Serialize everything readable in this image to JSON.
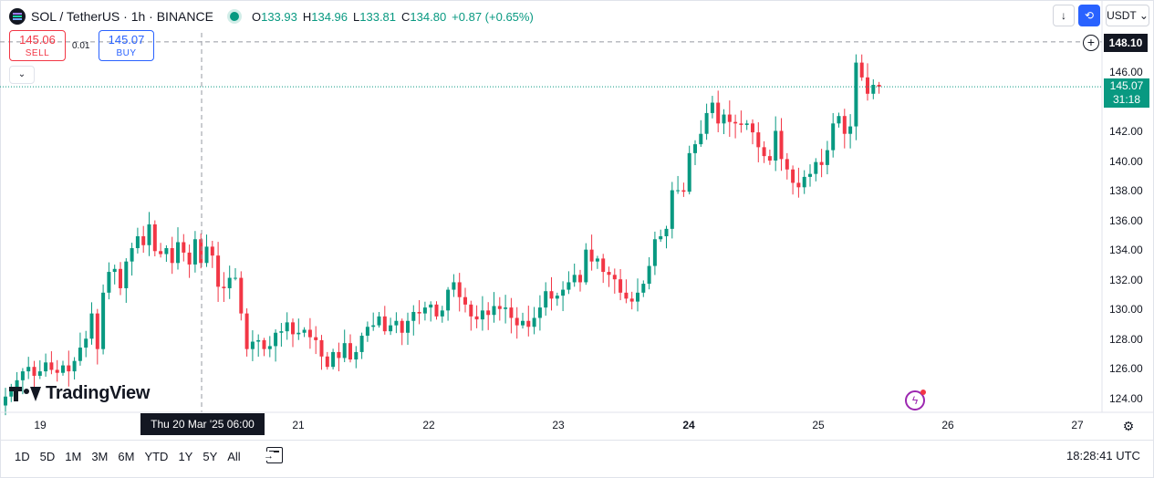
{
  "header": {
    "symbol_title": "SOL / TetherUS · 1h · BINANCE",
    "ohlc": {
      "o_label": "O",
      "o": "133.93",
      "h_label": "H",
      "h": "134.96",
      "l_label": "L",
      "l": "133.81",
      "c_label": "C",
      "c": "134.80",
      "change": "+0.87 (+0.65%)"
    }
  },
  "trade": {
    "sell_price": "145.06",
    "sell_label": "SELL",
    "spread": "0.01",
    "buy_price": "145.07",
    "buy_label": "BUY"
  },
  "controls": {
    "currency": "USDT",
    "currency_icon": "chevron-down-icon"
  },
  "price_axis": {
    "labels": [
      "146.00",
      "144.00",
      "142.00",
      "140.00",
      "138.00",
      "136.00",
      "134.00",
      "132.00",
      "130.00",
      "128.00",
      "126.00",
      "124.00"
    ],
    "crosshair_price": "148.10",
    "last_price": "145.07",
    "countdown": "31:18"
  },
  "time_axis": {
    "labels": [
      "19",
      "21",
      "22",
      "23",
      "24",
      "25",
      "26",
      "27"
    ],
    "bold_label": "24",
    "crosshair_time": "Thu 20 Mar '25   06:00"
  },
  "watermark": "TradingView",
  "bottom_bar": {
    "ranges": [
      "1D",
      "5D",
      "1M",
      "3M",
      "6M",
      "YTD",
      "1Y",
      "5Y",
      "All"
    ],
    "clock": "18:28:41 UTC"
  },
  "colors": {
    "up": "#089981",
    "down": "#f23645",
    "accent": "#2962ff"
  },
  "chart_data": {
    "type": "candlestick",
    "symbol": "SOL / TetherUS",
    "interval": "1h",
    "y_axis_range": [
      123.5,
      148.5
    ],
    "last_price": 145.07,
    "crosshair_price": 148.1,
    "close_series": [
      124.2,
      124.8,
      125.3,
      125.9,
      126.2,
      125.6,
      125.9,
      126.5,
      126.0,
      125.8,
      126.3,
      125.9,
      126.6,
      127.5,
      128.1,
      129.8,
      127.4,
      131.2,
      132.6,
      132.8,
      131.5,
      133.3,
      134.2,
      135.0,
      134.4,
      135.8,
      134.0,
      133.8,
      134.2,
      133.2,
      134.6,
      133.9,
      133.1,
      134.8,
      133.2,
      134.3,
      133.7,
      131.6,
      131.5,
      132.2,
      132.2,
      129.8,
      127.4,
      127.9,
      128.0,
      127.4,
      127.6,
      128.5,
      128.6,
      129.2,
      128.4,
      128.5,
      128.7,
      128.2,
      128.0,
      126.9,
      126.2,
      127.2,
      126.8,
      127.8,
      126.7,
      127.2,
      128.3,
      128.9,
      129.0,
      129.6,
      128.6,
      129.0,
      129.3,
      128.5,
      129.3,
      129.9,
      129.8,
      130.2,
      130.4,
      129.6,
      130.0,
      131.4,
      131.9,
      130.9,
      130.4,
      129.6,
      129.4,
      130.0,
      129.7,
      130.3,
      130.1,
      130.2,
      129.5,
      129.0,
      129.3,
      128.9,
      129.5,
      130.2,
      131.3,
      130.8,
      131.0,
      131.4,
      131.9,
      132.4,
      131.9,
      134.1,
      133.3,
      133.5,
      132.6,
      132.4,
      132.1,
      131.2,
      130.8,
      130.6,
      131.2,
      131.8,
      133.0,
      134.8,
      135.0,
      135.5,
      138.1,
      138.1,
      138.0,
      140.6,
      141.2,
      141.9,
      143.3,
      144.0,
      142.6,
      143.2,
      142.7,
      142.6,
      142.5,
      142.6,
      142.0,
      141.0,
      140.4,
      140.1,
      142.1,
      140.2,
      139.5,
      138.6,
      138.3,
      139.0,
      139.2,
      140.0,
      139.8,
      140.8,
      142.6,
      143.1,
      141.9,
      142.4,
      146.7,
      145.7,
      144.6,
      145.2,
      145.07
    ]
  }
}
